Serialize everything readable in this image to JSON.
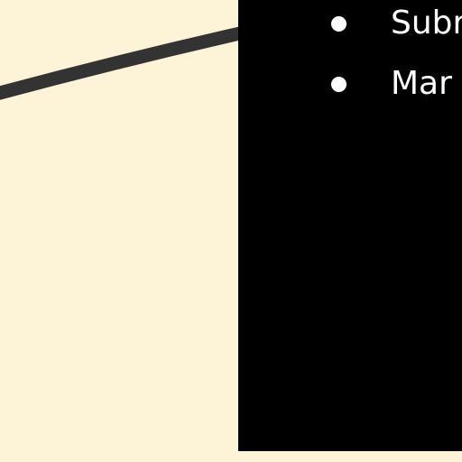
{
  "colors": {
    "canvas_background": "#fdf3d6",
    "panel_background": "#000000",
    "connector_line": "#333333",
    "bullet_text": "#ffffff"
  },
  "panel": {
    "items": [
      {
        "label": "Subr",
        "icon": "bullet-dot-icon"
      },
      {
        "label": "Mar",
        "icon": "bullet-dot-icon"
      }
    ]
  }
}
